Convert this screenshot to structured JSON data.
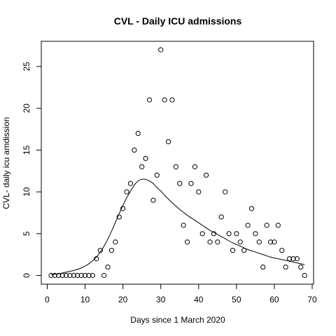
{
  "chart_data": {
    "type": "scatter",
    "title": "CVL - Daily ICU admissions",
    "xlabel": "Days since 1 March 2020",
    "ylabel": "CVL- daily icu amdission",
    "xlim": [
      0,
      70
    ],
    "ylim": [
      0,
      27
    ],
    "xticks": [
      0,
      10,
      20,
      30,
      40,
      50,
      60,
      70
    ],
    "yticks": [
      0,
      5,
      10,
      15,
      20,
      25
    ],
    "grid": false,
    "legend": "none",
    "point_color": "#000000",
    "line_color": "#000000",
    "series": [
      {
        "kind": "points",
        "marker": "open-circle",
        "x": [
          1,
          2,
          3,
          4,
          5,
          6,
          7,
          8,
          9,
          10,
          11,
          12,
          13,
          14,
          15,
          16,
          17,
          18,
          19,
          20,
          21,
          22,
          23,
          24,
          25,
          26,
          27,
          28,
          29,
          30,
          31,
          32,
          33,
          34,
          35,
          36,
          37,
          38,
          39,
          40,
          41,
          42,
          43,
          44,
          45,
          46,
          47,
          48,
          49,
          50,
          51,
          52,
          53,
          54,
          55,
          56,
          57,
          58,
          59,
          60,
          61,
          62,
          63,
          64,
          65,
          66,
          67,
          68
        ],
        "y": [
          0,
          0,
          0,
          0,
          0,
          0,
          0,
          0,
          0,
          0,
          0,
          0,
          2,
          3,
          0,
          1,
          3,
          4,
          7,
          8,
          10,
          11,
          15,
          17,
          13,
          14,
          21,
          9,
          12,
          27,
          21,
          16,
          21,
          13,
          11,
          6,
          4,
          11,
          13,
          10,
          5,
          12,
          4,
          5,
          4,
          7,
          10,
          5,
          3,
          5,
          4,
          3,
          6,
          8,
          5,
          4,
          1,
          6,
          4,
          4,
          6,
          3,
          1,
          2,
          2,
          2,
          1,
          0
        ]
      },
      {
        "kind": "fitted-curve",
        "x": [
          1,
          3,
          5,
          7,
          9,
          11,
          13,
          15,
          17,
          19,
          21,
          23,
          24,
          25,
          26,
          27,
          28,
          29,
          30,
          31,
          33,
          35,
          37,
          39,
          41,
          43,
          45,
          47,
          49,
          51,
          53,
          55,
          57,
          59,
          61,
          63,
          65,
          67,
          68
        ],
        "y": [
          0.1,
          0.2,
          0.4,
          0.6,
          0.9,
          1.4,
          2.2,
          3.5,
          5.3,
          7.4,
          9.3,
          10.8,
          11.3,
          11.5,
          11.5,
          11.3,
          11.0,
          10.5,
          10.1,
          9.6,
          8.7,
          7.9,
          7.2,
          6.6,
          6.0,
          5.4,
          4.9,
          4.4,
          3.9,
          3.5,
          3.1,
          2.8,
          2.5,
          2.2,
          2.0,
          1.8,
          1.6,
          1.4,
          1.3
        ]
      }
    ]
  }
}
